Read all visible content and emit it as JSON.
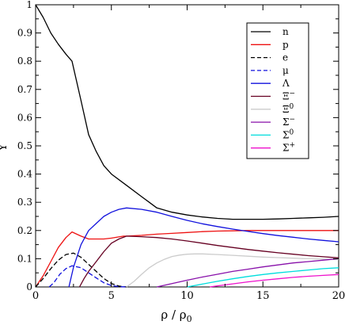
{
  "chart_data": {
    "type": "line",
    "xlabel": "ρ / ρ",
    "xlabel_sub": "0",
    "ylabel": "Y",
    "xlim": [
      0,
      20
    ],
    "ylim": [
      0,
      1
    ],
    "x_ticks": [
      0,
      5,
      10,
      15,
      20
    ],
    "y_ticks": [
      0,
      0.1,
      0.2,
      0.3,
      0.4,
      0.5,
      0.6,
      0.7,
      0.8,
      0.9,
      1
    ],
    "grid": false,
    "legend_position": "top-right",
    "legend": [
      {
        "key": "n",
        "label": "n",
        "sub": "",
        "sup": ""
      },
      {
        "key": "p",
        "label": "p",
        "sub": "",
        "sup": ""
      },
      {
        "key": "e",
        "label": "e",
        "sub": "",
        "sup": ""
      },
      {
        "key": "mu",
        "label": "μ",
        "sub": "",
        "sup": ""
      },
      {
        "key": "Lambda",
        "label": "Λ",
        "sub": "",
        "sup": ""
      },
      {
        "key": "Xi_m",
        "label": "Ξ",
        "sub": "",
        "sup": "−"
      },
      {
        "key": "Xi_0",
        "label": "Ξ",
        "sub": "",
        "sup": "0"
      },
      {
        "key": "Sigma_m",
        "label": "Σ",
        "sub": "",
        "sup": "−"
      },
      {
        "key": "Sigma_0",
        "label": "Σ",
        "sub": "",
        "sup": "0"
      },
      {
        "key": "Sigma_p",
        "label": "Σ",
        "sub": "",
        "sup": "+"
      }
    ],
    "series": [
      {
        "name": "n",
        "color": "#000000",
        "dash": "none",
        "x": [
          0,
          0.5,
          1,
          1.5,
          2,
          2.4,
          3,
          3.5,
          4,
          4.5,
          5,
          6,
          7,
          7.5,
          8,
          9,
          10,
          11,
          12,
          13,
          14,
          15,
          16,
          17,
          18,
          19,
          20
        ],
        "y": [
          1.0,
          0.955,
          0.9,
          0.86,
          0.825,
          0.8,
          0.66,
          0.54,
          0.48,
          0.43,
          0.4,
          0.36,
          0.32,
          0.3,
          0.28,
          0.265,
          0.255,
          0.248,
          0.243,
          0.24,
          0.24,
          0.24,
          0.241,
          0.243,
          0.245,
          0.247,
          0.25
        ]
      },
      {
        "name": "p",
        "color": "#ee1111",
        "dash": "none",
        "x": [
          0,
          0.5,
          1,
          1.5,
          2,
          2.4,
          3,
          3.5,
          4,
          4.5,
          5,
          5.8,
          6,
          7,
          8,
          9,
          10,
          11,
          12,
          13,
          14,
          15,
          16,
          17,
          18,
          19,
          20
        ],
        "y": [
          0,
          0.04,
          0.09,
          0.14,
          0.175,
          0.195,
          0.18,
          0.17,
          0.17,
          0.17,
          0.173,
          0.18,
          0.18,
          0.183,
          0.187,
          0.19,
          0.193,
          0.196,
          0.198,
          0.199,
          0.2,
          0.2,
          0.2,
          0.2,
          0.2,
          0.2,
          0.2
        ]
      },
      {
        "name": "e",
        "color": "#000000",
        "dash": "6,3",
        "x": [
          0,
          0.5,
          1,
          1.5,
          2,
          2.5,
          3,
          3.5,
          4,
          4.5,
          5,
          5.5,
          6
        ],
        "y": [
          0,
          0.03,
          0.065,
          0.095,
          0.115,
          0.12,
          0.105,
          0.08,
          0.055,
          0.03,
          0.012,
          0.003,
          0
        ]
      },
      {
        "name": "μ",
        "color": "#1111dd",
        "dash": "6,3",
        "x": [
          0.9,
          1.2,
          1.6,
          2,
          2.4,
          3,
          3.5,
          4,
          4.5,
          5,
          5.5,
          6
        ],
        "y": [
          0,
          0.015,
          0.045,
          0.065,
          0.075,
          0.068,
          0.05,
          0.032,
          0.015,
          0.005,
          0.001,
          0
        ]
      },
      {
        "name": "Λ",
        "color": "#1111dd",
        "dash": "none",
        "x": [
          2.2,
          2.5,
          3,
          3.5,
          4,
          4.5,
          5,
          5.5,
          6,
          7,
          8,
          9,
          10,
          11,
          12,
          13,
          14,
          15,
          16,
          17,
          18,
          19,
          20
        ],
        "y": [
          0,
          0.07,
          0.15,
          0.2,
          0.225,
          0.25,
          0.265,
          0.275,
          0.28,
          0.275,
          0.265,
          0.25,
          0.236,
          0.224,
          0.214,
          0.205,
          0.197,
          0.189,
          0.182,
          0.176,
          0.17,
          0.165,
          0.16
        ]
      },
      {
        "name": "Ξ−",
        "color": "#660022",
        "dash": "none",
        "x": [
          2.9,
          3.2,
          3.5,
          4,
          4.5,
          5,
          5.5,
          6,
          7,
          8,
          9,
          10,
          11,
          12,
          13,
          14,
          15,
          16,
          17,
          18,
          19,
          20
        ],
        "y": [
          0,
          0.03,
          0.055,
          0.09,
          0.125,
          0.155,
          0.17,
          0.18,
          0.178,
          0.175,
          0.17,
          0.163,
          0.155,
          0.147,
          0.14,
          0.133,
          0.127,
          0.121,
          0.116,
          0.111,
          0.107,
          0.103
        ]
      },
      {
        "name": "Ξ0",
        "color": "#cccccc",
        "dash": "none",
        "x": [
          6.0,
          6.5,
          7,
          7.5,
          8,
          8.5,
          9,
          9.5,
          10,
          10.5,
          11,
          12,
          13,
          14,
          15,
          16,
          17,
          18,
          19,
          20
        ],
        "y": [
          0,
          0.02,
          0.045,
          0.068,
          0.085,
          0.098,
          0.108,
          0.113,
          0.116,
          0.117,
          0.117,
          0.115,
          0.112,
          0.109,
          0.106,
          0.104,
          0.102,
          0.1,
          0.099,
          0.098
        ]
      },
      {
        "name": "Σ−",
        "color": "#8811aa",
        "dash": "none",
        "x": [
          8.0,
          9,
          10,
          11,
          12,
          13,
          14,
          15,
          16,
          17,
          18,
          19,
          20
        ],
        "y": [
          0,
          0.012,
          0.024,
          0.035,
          0.045,
          0.055,
          0.063,
          0.071,
          0.078,
          0.085,
          0.09,
          0.095,
          0.1
        ]
      },
      {
        "name": "Σ0",
        "color": "#00dddd",
        "dash": "none",
        "x": [
          10.0,
          11,
          12,
          13,
          14,
          15,
          16,
          17,
          18,
          19,
          20
        ],
        "y": [
          0,
          0.01,
          0.02,
          0.029,
          0.037,
          0.044,
          0.05,
          0.055,
          0.06,
          0.065,
          0.068
        ]
      },
      {
        "name": "Σ+",
        "color": "#ee11cc",
        "dash": "none",
        "x": [
          11.5,
          12,
          13,
          14,
          15,
          16,
          17,
          18,
          19,
          20
        ],
        "y": [
          0,
          0.004,
          0.011,
          0.018,
          0.024,
          0.029,
          0.034,
          0.038,
          0.041,
          0.044
        ]
      }
    ]
  }
}
